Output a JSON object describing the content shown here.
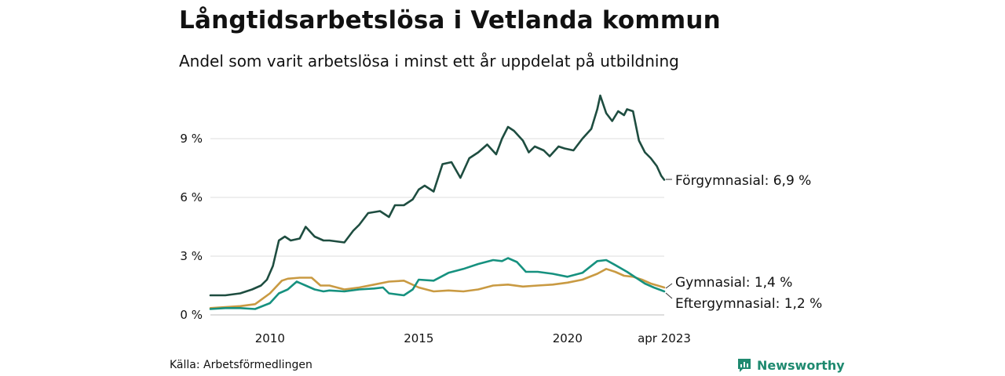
{
  "title": "Långtidsarbetslösa i Vetlanda kommun",
  "subtitle": "Andel som varit arbetslösa i minst ett år uppdelat på utbildning",
  "source": "Källa: Arbetsförmedlingen",
  "brand": {
    "name": "Newsworthy",
    "icon": "newsworthy-chart-icon",
    "color": "#1f8a70"
  },
  "chart_data": {
    "type": "line",
    "title": "Långtidsarbetslösa i Vetlanda kommun",
    "subtitle": "Andel som varit arbetslösa i minst ett år uppdelat på utbildning",
    "xlabel": "",
    "ylabel": "",
    "x_range": [
      2008.0,
      2023.25
    ],
    "ylim": [
      0,
      11.2
    ],
    "y_ticks": [
      0,
      3,
      6,
      9
    ],
    "y_tick_labels": [
      "0 %",
      "3 %",
      "6 %",
      "9 %"
    ],
    "x_ticks": [
      2010,
      2015,
      2020,
      2023.25
    ],
    "x_tick_labels": [
      "2010",
      "2015",
      "2020",
      "apr 2023"
    ],
    "grid": true,
    "legend": "end-labels",
    "series": [
      {
        "name": "Förgymnasial",
        "end_label": "Förgymnasial: 6,9 %",
        "color": "#1e4d40",
        "x": [
          2008.0,
          2008.5,
          2009.0,
          2009.4,
          2009.7,
          2009.9,
          2010.1,
          2010.3,
          2010.5,
          2010.7,
          2011.0,
          2011.2,
          2011.5,
          2011.8,
          2012.0,
          2012.5,
          2012.8,
          2013.0,
          2013.3,
          2013.7,
          2014.0,
          2014.2,
          2014.5,
          2014.8,
          2015.0,
          2015.2,
          2015.5,
          2015.8,
          2016.1,
          2016.4,
          2016.7,
          2017.0,
          2017.3,
          2017.6,
          2017.8,
          2018.0,
          2018.2,
          2018.5,
          2018.7,
          2018.9,
          2019.2,
          2019.4,
          2019.7,
          2019.9,
          2020.2,
          2020.5,
          2020.8,
          2021.0,
          2021.1,
          2021.3,
          2021.5,
          2021.7,
          2021.9,
          2022.0,
          2022.2,
          2022.4,
          2022.6,
          2022.8,
          2023.0,
          2023.15,
          2023.25
        ],
        "values": [
          1.0,
          1.0,
          1.1,
          1.3,
          1.5,
          1.8,
          2.5,
          3.8,
          4.0,
          3.8,
          3.9,
          4.5,
          4.0,
          3.8,
          3.8,
          3.7,
          4.3,
          4.6,
          5.2,
          5.3,
          5.0,
          5.6,
          5.6,
          5.9,
          6.4,
          6.6,
          6.3,
          7.7,
          7.8,
          7.0,
          8.0,
          8.3,
          8.7,
          8.2,
          9.0,
          9.6,
          9.4,
          8.9,
          8.3,
          8.6,
          8.4,
          8.1,
          8.6,
          8.5,
          8.4,
          9.0,
          9.5,
          10.5,
          11.2,
          10.3,
          9.9,
          10.4,
          10.2,
          10.5,
          10.4,
          8.9,
          8.3,
          8.0,
          7.6,
          7.1,
          6.9
        ]
      },
      {
        "name": "Gymnasial",
        "end_label": "Gymnasial: 1,4 %",
        "color": "#c99a42",
        "x": [
          2008.0,
          2008.5,
          2009.0,
          2009.5,
          2010.0,
          2010.4,
          2010.6,
          2011.0,
          2011.4,
          2011.7,
          2012.0,
          2012.5,
          2013.0,
          2013.5,
          2014.0,
          2014.5,
          2015.0,
          2015.5,
          2016.0,
          2016.5,
          2017.0,
          2017.5,
          2018.0,
          2018.5,
          2019.0,
          2019.5,
          2020.0,
          2020.5,
          2021.0,
          2021.3,
          2021.6,
          2021.9,
          2022.2,
          2022.5,
          2022.8,
          2023.25
        ],
        "values": [
          0.35,
          0.4,
          0.45,
          0.55,
          1.1,
          1.75,
          1.85,
          1.9,
          1.9,
          1.5,
          1.5,
          1.3,
          1.4,
          1.55,
          1.7,
          1.75,
          1.4,
          1.2,
          1.25,
          1.2,
          1.3,
          1.5,
          1.55,
          1.45,
          1.5,
          1.55,
          1.65,
          1.8,
          2.1,
          2.35,
          2.2,
          2.0,
          1.95,
          1.8,
          1.6,
          1.4
        ]
      },
      {
        "name": "Eftergymnasial",
        "end_label": "Eftergymnasial: 1,2 %",
        "color": "#16917f",
        "x": [
          2008.0,
          2008.5,
          2009.0,
          2009.5,
          2010.0,
          2010.3,
          2010.6,
          2010.9,
          2011.2,
          2011.5,
          2011.8,
          2012.0,
          2012.5,
          2013.0,
          2013.5,
          2013.8,
          2014.0,
          2014.5,
          2014.8,
          2015.0,
          2015.5,
          2016.0,
          2016.5,
          2017.0,
          2017.5,
          2017.8,
          2018.0,
          2018.3,
          2018.6,
          2019.0,
          2019.5,
          2020.0,
          2020.5,
          2021.0,
          2021.3,
          2021.6,
          2022.0,
          2022.3,
          2022.6,
          2022.9,
          2023.25
        ],
        "values": [
          0.3,
          0.35,
          0.35,
          0.3,
          0.6,
          1.1,
          1.3,
          1.7,
          1.5,
          1.3,
          1.2,
          1.25,
          1.2,
          1.3,
          1.35,
          1.4,
          1.1,
          1.0,
          1.3,
          1.8,
          1.75,
          2.15,
          2.35,
          2.6,
          2.8,
          2.75,
          2.9,
          2.7,
          2.2,
          2.2,
          2.1,
          1.95,
          2.15,
          2.75,
          2.8,
          2.55,
          2.2,
          1.9,
          1.6,
          1.4,
          1.2
        ]
      }
    ]
  }
}
